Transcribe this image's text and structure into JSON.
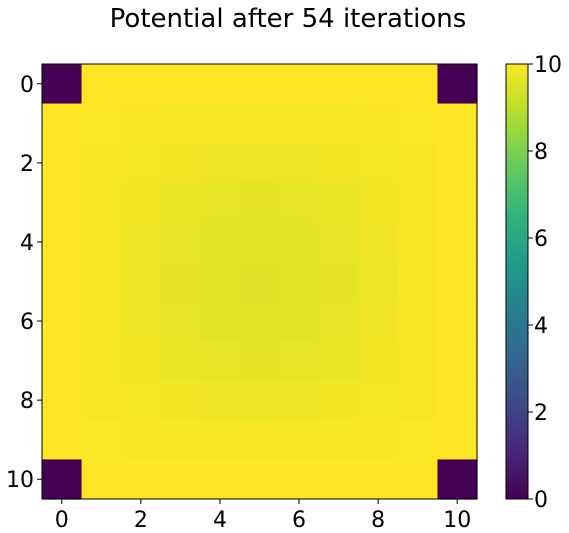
{
  "chart_data": {
    "type": "heatmap",
    "title": "Potential after 54 iterations",
    "xlabel": "",
    "ylabel": "",
    "x_ticks": [
      "0",
      "2",
      "4",
      "6",
      "8",
      "10"
    ],
    "y_ticks": [
      "0",
      "2",
      "4",
      "6",
      "8",
      "10"
    ],
    "colormap": "viridis",
    "colorbar": {
      "range": [
        0,
        10
      ],
      "ticks": [
        "0",
        "2",
        "4",
        "6",
        "8",
        "10"
      ]
    },
    "grid": false,
    "z": [
      [
        0,
        10,
        10,
        10,
        10,
        10,
        10,
        10,
        10,
        10,
        0
      ],
      [
        10,
        9.96,
        9.93,
        9.91,
        9.9,
        9.89,
        9.9,
        9.91,
        9.93,
        9.96,
        10
      ],
      [
        10,
        9.93,
        9.86,
        9.81,
        9.78,
        9.77,
        9.78,
        9.81,
        9.86,
        9.93,
        10
      ],
      [
        10,
        9.91,
        9.81,
        9.73,
        9.68,
        9.66,
        9.68,
        9.73,
        9.81,
        9.91,
        10
      ],
      [
        10,
        9.9,
        9.78,
        9.68,
        9.62,
        9.59,
        9.62,
        9.68,
        9.78,
        9.9,
        10
      ],
      [
        10,
        9.89,
        9.77,
        9.66,
        9.59,
        9.56,
        9.59,
        9.66,
        9.77,
        9.89,
        10
      ],
      [
        10,
        9.9,
        9.78,
        9.68,
        9.62,
        9.59,
        9.62,
        9.68,
        9.78,
        9.9,
        10
      ],
      [
        10,
        9.91,
        9.81,
        9.73,
        9.68,
        9.66,
        9.68,
        9.73,
        9.81,
        9.91,
        10
      ],
      [
        10,
        9.93,
        9.86,
        9.81,
        9.78,
        9.77,
        9.78,
        9.81,
        9.86,
        9.93,
        10
      ],
      [
        10,
        9.96,
        9.93,
        9.91,
        9.9,
        9.89,
        9.9,
        9.91,
        9.93,
        9.96,
        10
      ],
      [
        0,
        10,
        10,
        10,
        10,
        10,
        10,
        10,
        10,
        10,
        0
      ]
    ]
  }
}
